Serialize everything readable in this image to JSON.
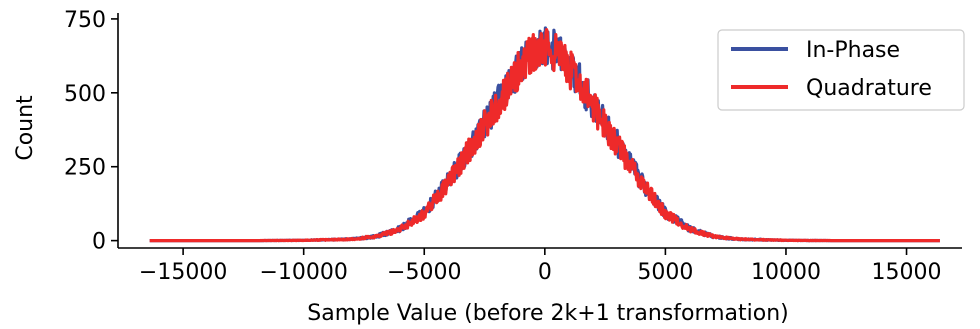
{
  "chart_data": {
    "type": "line",
    "title": "",
    "xlabel": "Sample Value (before 2k+1 transformation)",
    "ylabel": "Count",
    "xlim": [
      -17700,
      17300
    ],
    "ylim": [
      -25,
      770
    ],
    "xticks": [
      -15000,
      -10000,
      -5000,
      0,
      5000,
      10000,
      15000
    ],
    "xtick_labels": [
      "−15000",
      "−10000",
      "−5000",
      "0",
      "5000",
      "10000",
      "15000"
    ],
    "yticks": [
      0,
      250,
      500,
      750
    ],
    "ytick_labels": [
      "0",
      "250",
      "500",
      "750"
    ],
    "grid": false,
    "legend_position": "top-right",
    "series": [
      {
        "name": "In-Phase",
        "color": "#3a50a0",
        "x": [
          -16384,
          -12000,
          -10000,
          -8000,
          -7000,
          -6000,
          -5000,
          -4000,
          -3000,
          -2000,
          -1500,
          -1000,
          -500,
          0,
          500,
          1000,
          1500,
          2000,
          3000,
          4000,
          5000,
          6000,
          7000,
          8000,
          10000,
          12000,
          16384
        ],
        "values": [
          0,
          0,
          1,
          5,
          14,
          40,
          95,
          200,
          330,
          460,
          530,
          590,
          640,
          660,
          640,
          590,
          530,
          460,
          330,
          200,
          95,
          40,
          14,
          5,
          1,
          0,
          0
        ],
        "noise_amplitude": 70
      },
      {
        "name": "Quadrature",
        "color": "#ee2a2a",
        "x": [
          -16384,
          -12000,
          -10000,
          -8000,
          -7000,
          -6000,
          -5000,
          -4000,
          -3000,
          -2000,
          -1500,
          -1000,
          -500,
          0,
          500,
          1000,
          1500,
          2000,
          3000,
          4000,
          5000,
          6000,
          7000,
          8000,
          10000,
          12000,
          16384
        ],
        "values": [
          0,
          0,
          1,
          5,
          14,
          38,
          92,
          195,
          325,
          455,
          525,
          585,
          632,
          650,
          632,
          585,
          525,
          455,
          325,
          195,
          92,
          38,
          14,
          5,
          1,
          0,
          0
        ],
        "noise_amplitude": 70
      }
    ]
  }
}
